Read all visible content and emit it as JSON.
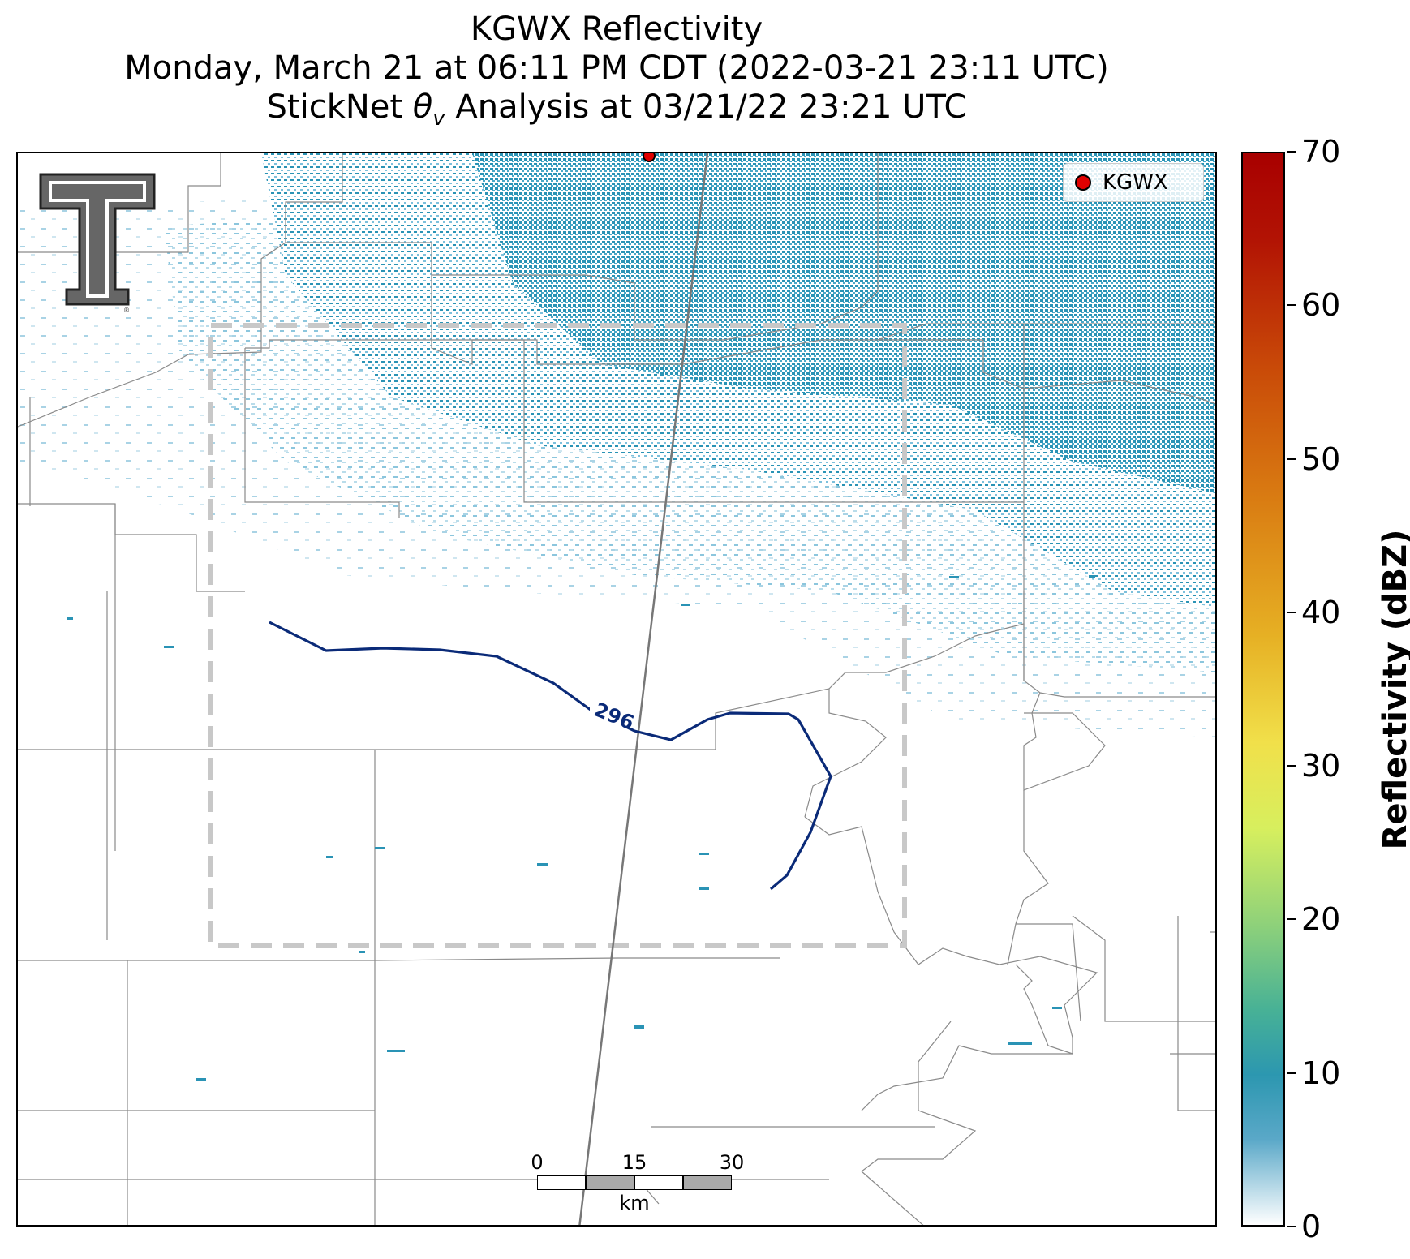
{
  "title": {
    "line1": "KGWX Reflectivity",
    "line2": "Monday, March 21 at 06:11 PM CDT (2022-03-21 23:11 UTC)",
    "line3_prefix": "StickNet ",
    "line3_symbol": "θ",
    "line3_subscript": "v",
    "line3_suffix": " Analysis at 03/21/22 23:21 UTC"
  },
  "legend": {
    "label": "KGWX",
    "marker_color": "#e00000"
  },
  "contour": {
    "label": "296",
    "color": "#0a2a78"
  },
  "scale_bar": {
    "ticks": [
      "0",
      "15",
      "30"
    ],
    "unit": "km"
  },
  "colorbar": {
    "label": "Reflectivity (dBZ)",
    "ticks": [
      "0",
      "10",
      "20",
      "30",
      "40",
      "50",
      "60",
      "70"
    ],
    "min": 0,
    "max": 70
  },
  "colors": {
    "reflectivity_main": "#2a93b5",
    "analysis_box": "#c8c8c8",
    "logo": "#666666"
  },
  "icons": {
    "logo": "texas-tech-double-t-logo"
  }
}
